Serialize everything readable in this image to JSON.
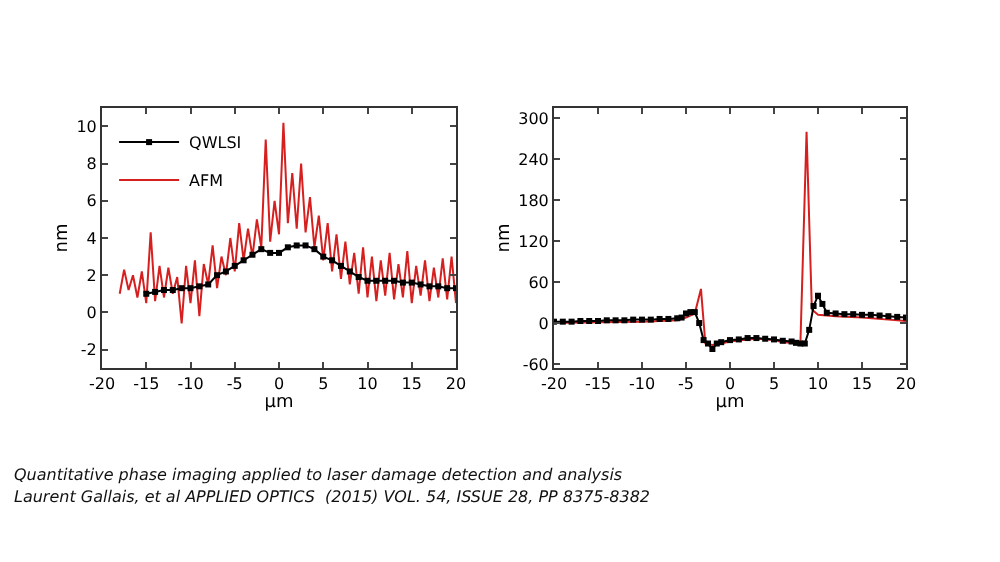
{
  "chart_data": [
    {
      "type": "line",
      "xlabel": "μm",
      "ylabel": "nm",
      "xlim": [
        -20,
        20
      ],
      "xticks": [
        -20,
        -15,
        -10,
        -5,
        0,
        5,
        10,
        15,
        20
      ],
      "ylim": [
        -3,
        11
      ],
      "yticks": [
        -2,
        0,
        2,
        4,
        6,
        8,
        10
      ],
      "grid": false,
      "legend": "top left",
      "annotations": [
        "Quantitative phase imaging applied to laser damage detection and analysis",
        "Laurent Gallais, et al APPLIED OPTICS  (2015) VOL. 54, ISSUE 28, PP 8375-8382"
      ],
      "series": [
        {
          "name": "QWLSI",
          "color": "#000000",
          "marker": "square",
          "x": [
            -15,
            -14,
            -13,
            -12,
            -11,
            -10,
            -9,
            -8,
            -7,
            -6,
            -5,
            -4,
            -3,
            -2,
            -1,
            0,
            1,
            2,
            3,
            4,
            5,
            6,
            7,
            8,
            9,
            10,
            11,
            12,
            13,
            14,
            15,
            16,
            17,
            18,
            19,
            20
          ],
          "values": [
            1.0,
            1.1,
            1.2,
            1.2,
            1.3,
            1.3,
            1.4,
            1.5,
            2.0,
            2.2,
            2.5,
            2.8,
            3.1,
            3.4,
            3.2,
            3.2,
            3.5,
            3.6,
            3.6,
            3.4,
            3.0,
            2.8,
            2.5,
            2.2,
            1.9,
            1.7,
            1.7,
            1.7,
            1.7,
            1.6,
            1.6,
            1.5,
            1.4,
            1.4,
            1.3,
            1.3
          ]
        },
        {
          "name": "AFM",
          "color": "#d62020",
          "marker": "none",
          "x": [
            -18,
            -17.5,
            -17,
            -16.5,
            -16,
            -15.5,
            -15,
            -14.5,
            -14,
            -13.5,
            -13,
            -12.5,
            -12,
            -11.5,
            -11,
            -10.5,
            -10,
            -9.5,
            -9,
            -8.5,
            -8,
            -7.5,
            -7,
            -6.5,
            -6,
            -5.5,
            -5,
            -4.5,
            -4,
            -3.5,
            -3,
            -2.5,
            -2,
            -1.5,
            -1,
            -0.5,
            0,
            0.5,
            1,
            1.5,
            2,
            2.5,
            3,
            3.5,
            4,
            4.5,
            5,
            5.5,
            6,
            6.5,
            7,
            7.5,
            8,
            8.5,
            9,
            9.5,
            10,
            10.5,
            11,
            11.5,
            12,
            12.5,
            13,
            13.5,
            14,
            14.5,
            15,
            15.5,
            16,
            16.5,
            17,
            17.5,
            18,
            18.5,
            19,
            19.5,
            20
          ],
          "values": [
            1.0,
            2.3,
            1.2,
            2.0,
            0.8,
            2.2,
            0.5,
            4.3,
            0.6,
            2.5,
            0.8,
            2.4,
            1.0,
            1.9,
            -0.6,
            2.5,
            0.5,
            2.8,
            -0.2,
            2.6,
            1.5,
            3.6,
            1.3,
            3.0,
            2.0,
            4.0,
            2.2,
            4.8,
            2.8,
            4.5,
            3.0,
            5.0,
            3.5,
            9.3,
            3.8,
            6.0,
            4.2,
            10.2,
            4.8,
            7.5,
            4.5,
            8.0,
            4.3,
            6.2,
            3.5,
            5.2,
            2.8,
            4.8,
            2.2,
            4.2,
            1.8,
            3.8,
            1.5,
            3.2,
            1.0,
            3.5,
            0.8,
            3.0,
            0.6,
            2.8,
            0.9,
            3.2,
            0.7,
            2.6,
            0.8,
            3.3,
            0.5,
            2.5,
            0.9,
            2.8,
            0.6,
            2.4,
            0.8,
            2.9,
            0.7,
            3.0,
            0.5
          ]
        }
      ]
    },
    {
      "type": "line",
      "xlabel": "μm",
      "ylabel": "nm",
      "xlim": [
        -20,
        20
      ],
      "xticks": [
        -20,
        -15,
        -10,
        -5,
        0,
        5,
        10,
        15,
        20
      ],
      "ylim": [
        -66,
        315
      ],
      "yticks": [
        -60,
        0,
        60,
        120,
        180,
        240,
        300
      ],
      "grid": false,
      "legend": false,
      "series": [
        {
          "color": "#000000",
          "marker": "square",
          "x": [
            -20,
            -19,
            -18,
            -17,
            -16,
            -15,
            -14,
            -13,
            -12,
            -11,
            -10,
            -9,
            -8,
            -7,
            -6,
            -5.5,
            -5,
            -4.5,
            -4,
            -3.5,
            -3,
            -2.5,
            -2,
            -1.5,
            -1,
            0,
            1,
            2,
            3,
            4,
            5,
            6,
            7,
            7.5,
            8,
            8.5,
            9,
            9.5,
            10,
            10.5,
            11,
            12,
            13,
            14,
            15,
            16,
            17,
            18,
            19,
            20
          ],
          "values": [
            2,
            2,
            2,
            3,
            3,
            3,
            4,
            4,
            4,
            5,
            5,
            5,
            6,
            6,
            7,
            8,
            14,
            16,
            16,
            0,
            -25,
            -30,
            -38,
            -30,
            -28,
            -25,
            -24,
            -22,
            -22,
            -23,
            -24,
            -26,
            -27,
            -29,
            -30,
            -30,
            -10,
            25,
            40,
            28,
            15,
            14,
            13,
            13,
            12,
            12,
            11,
            10,
            9,
            8
          ]
        },
        {
          "color": "#d62020",
          "marker": "none",
          "x": [
            -20,
            -15,
            -10,
            -6,
            -5,
            -4,
            -3.3,
            -2.8,
            -2,
            -1,
            0,
            2,
            3,
            5,
            6,
            7,
            8,
            8.7,
            9.3,
            10,
            12,
            15,
            18,
            20
          ],
          "values": [
            0,
            1,
            2,
            4,
            8,
            14,
            50,
            -30,
            -32,
            -30,
            -27,
            -24,
            -23,
            -25,
            -28,
            -29,
            -30,
            280,
            20,
            12,
            10,
            8,
            5,
            3
          ]
        }
      ]
    }
  ]
}
